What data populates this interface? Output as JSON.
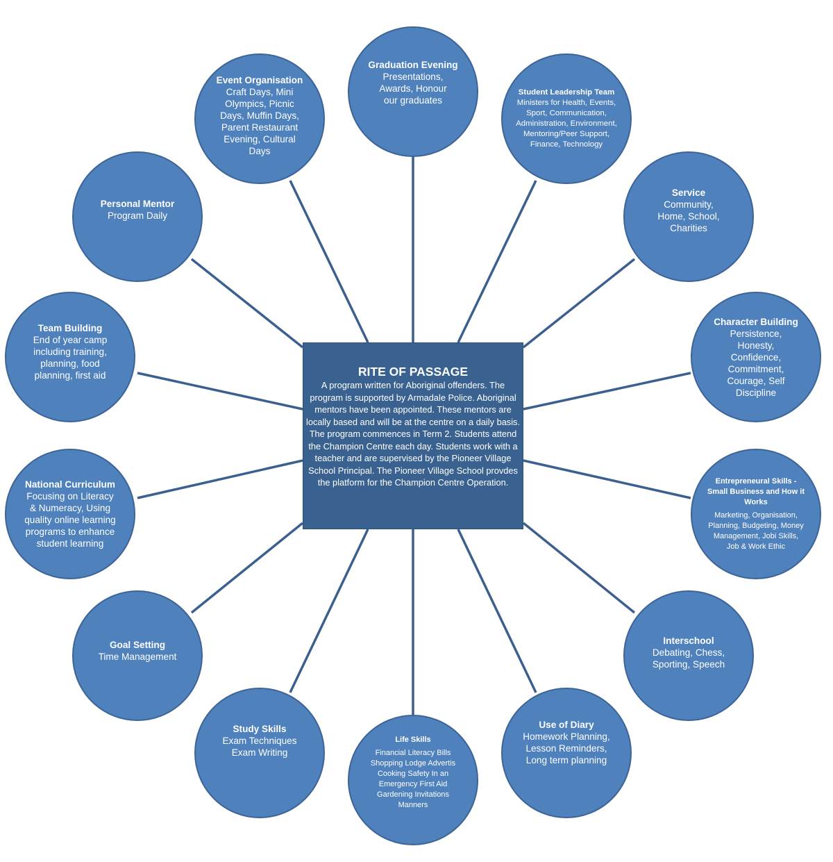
{
  "center": {
    "title": "RITE OF PASSAGE",
    "description": "A program written for Aboriginal offenders. The program is supported by Armadale Police. Aboriginal mentors have been appointed. These mentors are locally based and will be at the centre on a daily basis. The program commences in Term 2. Students attend the Champion Centre each day. Students work with a teacher and are supervised by the Pioneer Village School Principal. The Pioneer Village School provdes the platform for the Champion Centre Operation."
  },
  "nodes": [
    {
      "id": "graduation-evening",
      "title": "Graduation Evening",
      "text": "Presentations, Awards, Honour our graduates"
    },
    {
      "id": "student-leadership-team",
      "title": "Student Leadership Team",
      "text": "Ministers for Health, Events, Sport, Communication, Administration, Environment, Mentoring/Peer Support, Finance, Technology"
    },
    {
      "id": "service",
      "title": "Service",
      "text": "Community, Home, School, Charities"
    },
    {
      "id": "character-building",
      "title": "Character Building",
      "text": "Persistence, Honesty, Confidence, Commitment, Courage, Self Discipline"
    },
    {
      "id": "entrepreneural-skills",
      "title": "Entrepreneural Skills - Small Business and How it Works",
      "text": "Marketing, Organisation, Planning, Budgeting, Money Management, Jobi Skills, Job & Work Ethic"
    },
    {
      "id": "interschool",
      "title": "Interschool",
      "text": "Debating, Chess, Sporting, Speech"
    },
    {
      "id": "use-of-diary",
      "title": "Use of Diary",
      "text": "Homework Planning, Lesson Reminders, Long term planning"
    },
    {
      "id": "life-skills",
      "title": "Life Skills",
      "text": "Financial Literacy Bills Shopping Lodge Advertis Cooking Safety In an Emergency First Aid Gardening Invitations Manners"
    },
    {
      "id": "study-skills",
      "title": "Study Skills",
      "text": "Exam Techniques Exam Writing"
    },
    {
      "id": "goal-setting",
      "title": "Goal Setting",
      "text": "Time Management"
    },
    {
      "id": "national-curriculum",
      "title": "National Curriculum",
      "text": "Focusing on Literacy & Numeracy, Using quality online learning programs to enhance student learning"
    },
    {
      "id": "team-building",
      "title": "Team Building",
      "text": "End of year camp including training, planning, food planning, first aid"
    },
    {
      "id": "personal-mentor",
      "title": "Personal Mentor",
      "text": "Program Daily"
    },
    {
      "id": "event-organisation",
      "title": "Event Organisation",
      "text": "Craft Days, Mini Olympics, Picnic Days, Muffin Days, Parent Restaurant Evening, Cultural Days"
    }
  ],
  "colors": {
    "circle_fill": "#4f81bd",
    "circle_border": "#3c6497",
    "center_fill": "#3a6291",
    "connector": "#3b5f8f",
    "text": "#ffffff"
  }
}
